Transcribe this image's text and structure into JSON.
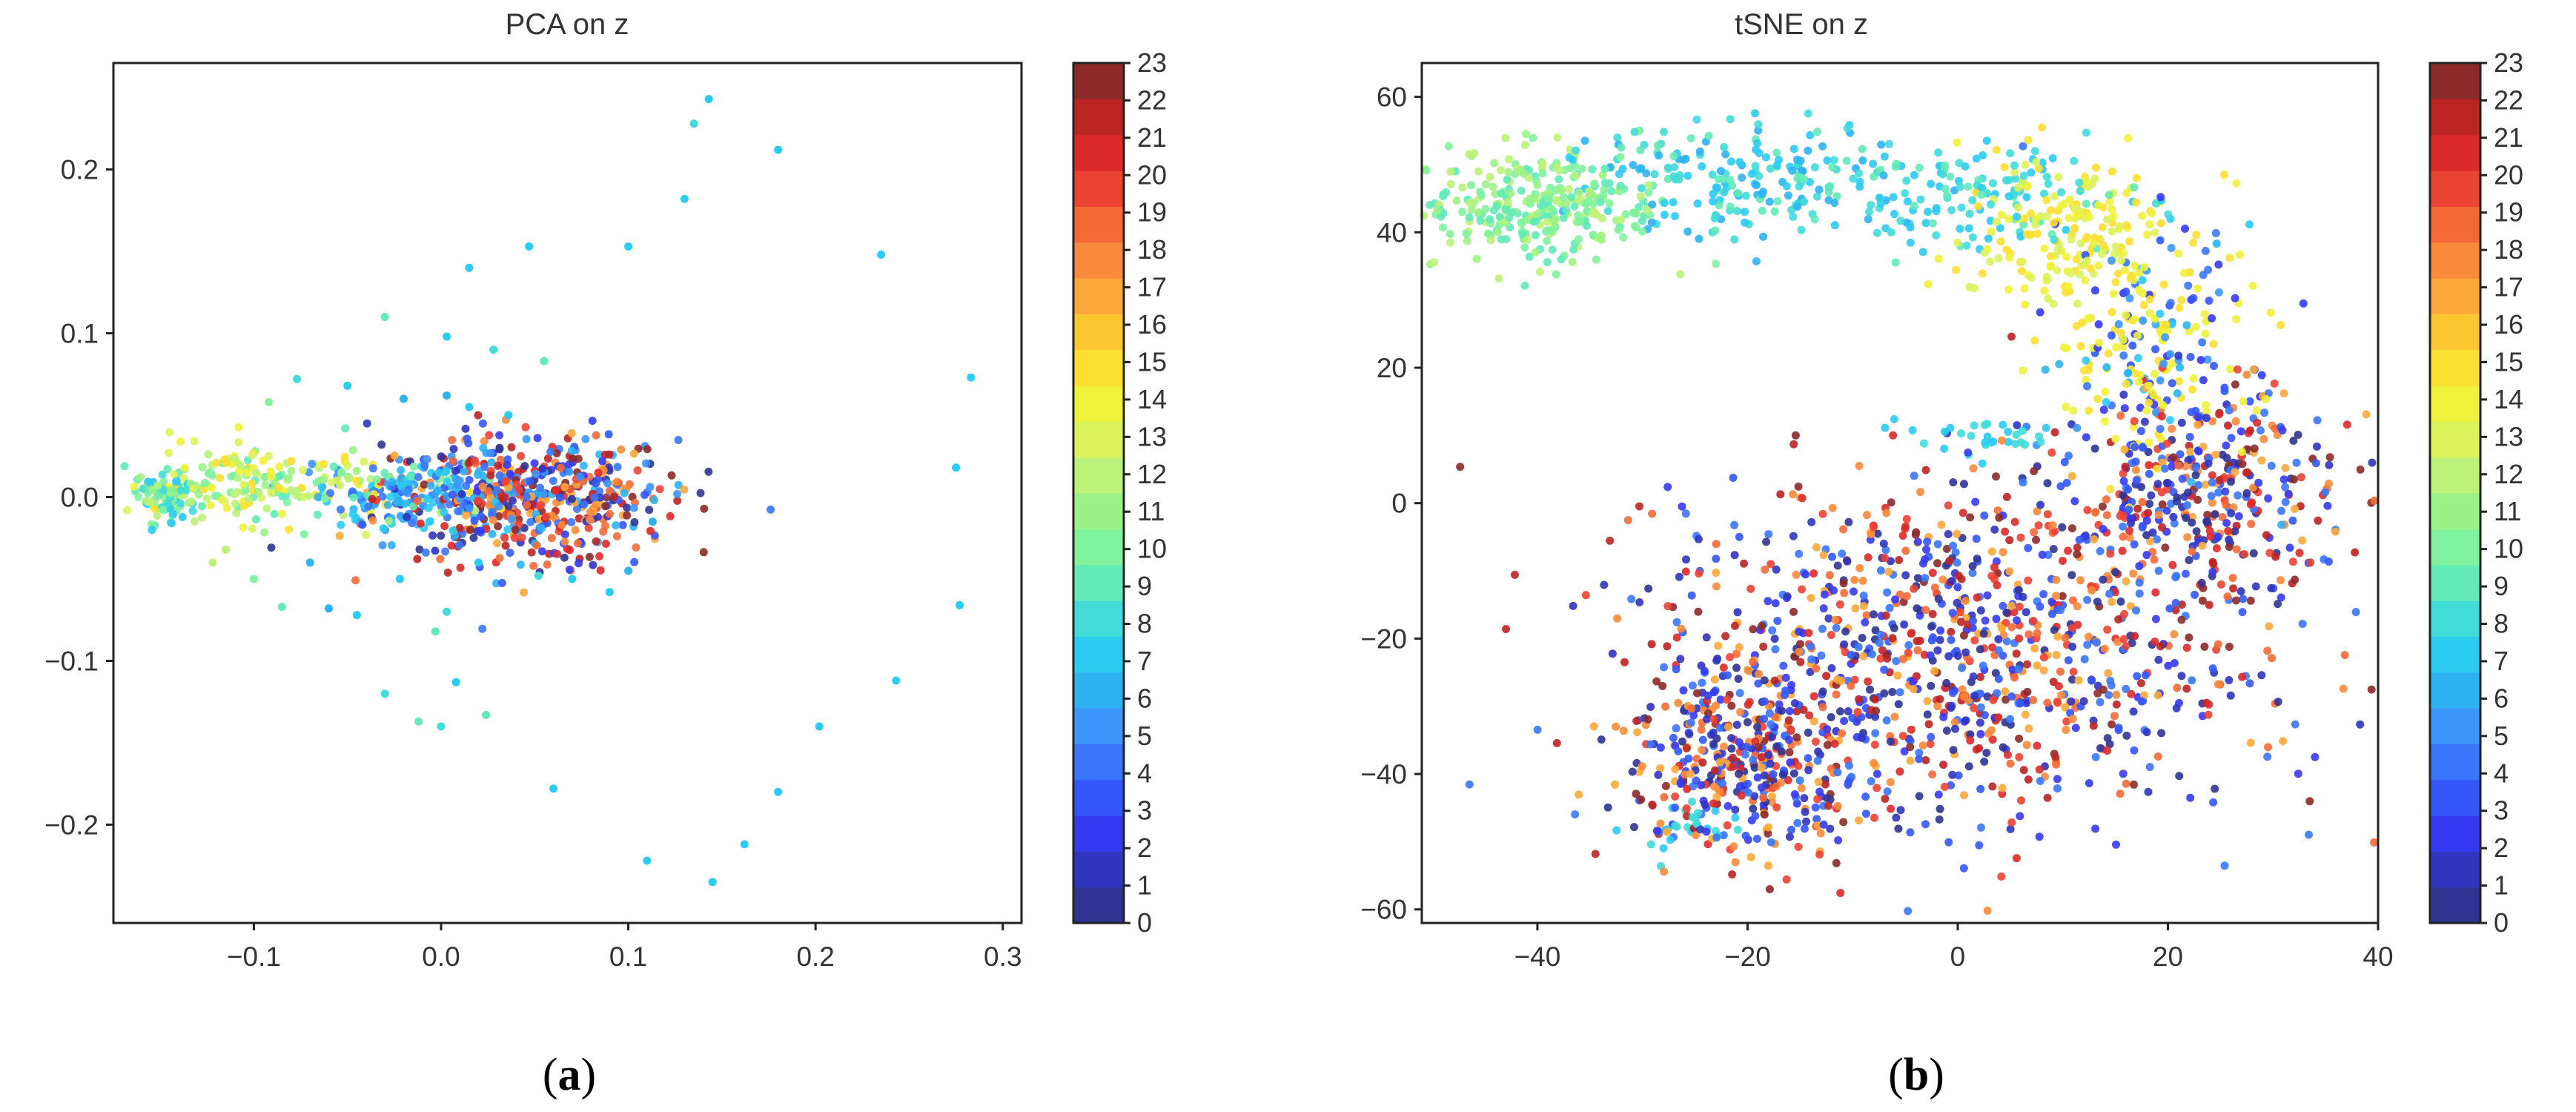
{
  "figure": {
    "caption_a_open": "(",
    "caption_a_letter": "a",
    "caption_a_close": ")",
    "caption_b_open": "(",
    "caption_b_letter": "b",
    "caption_b_close": ")"
  },
  "colorbar": {
    "colormap": "jet",
    "min": 0,
    "max": 23,
    "ticks": [
      "0",
      "1",
      "2",
      "3",
      "4",
      "5",
      "6",
      "7",
      "8",
      "9",
      "10",
      "11",
      "12",
      "13",
      "14",
      "15",
      "16",
      "17",
      "18",
      "19",
      "20",
      "21",
      "22",
      "23"
    ],
    "colors": [
      "#2f3493",
      "#3134bf",
      "#353af2",
      "#3457fc",
      "#3a76fc",
      "#3c96fc",
      "#2fb2f2",
      "#2ccbf2",
      "#41dcd8",
      "#63eab8",
      "#81f29d",
      "#9df286",
      "#bdf27a",
      "#dbf25c",
      "#eef23a",
      "#fbe032",
      "#fdc731",
      "#fca83a",
      "#f9893b",
      "#f46a36",
      "#ec4234",
      "#dc2a2a",
      "#bd2424",
      "#8c2a2a"
    ]
  },
  "chart_data": [
    {
      "type": "scatter",
      "title": "PCA on z",
      "xlabel": "",
      "ylabel": "",
      "xlim": [
        -0.175,
        0.31
      ],
      "ylim": [
        -0.26,
        0.265
      ],
      "xticks": [
        -0.1,
        0.0,
        0.1,
        0.2,
        0.3
      ],
      "xtick_labels": [
        "−0.1",
        "0.0",
        "0.1",
        "0.2",
        "0.3"
      ],
      "yticks": [
        -0.2,
        -0.1,
        0.0,
        0.1,
        0.2
      ],
      "ytick_labels": [
        "−0.2",
        "−0.1",
        "0.0",
        "0.1",
        "0.2"
      ],
      "grid": false,
      "color_by": "label 0–23",
      "points": [
        [
          0.143,
          0.243,
          7
        ],
        [
          0.135,
          0.228,
          8
        ],
        [
          0.18,
          0.212,
          7
        ],
        [
          0.13,
          0.182,
          7
        ],
        [
          0.047,
          0.153,
          7
        ],
        [
          0.1,
          0.153,
          7
        ],
        [
          0.235,
          0.148,
          7
        ],
        [
          0.015,
          0.14,
          7
        ],
        [
          -0.03,
          0.11,
          9
        ],
        [
          0.283,
          0.073,
          7
        ],
        [
          0.003,
          0.098,
          7
        ],
        [
          0.028,
          0.09,
          8
        ],
        [
          -0.077,
          0.072,
          8
        ],
        [
          -0.05,
          0.068,
          7
        ],
        [
          0.055,
          0.083,
          9
        ],
        [
          -0.02,
          0.06,
          6
        ],
        [
          0.003,
          0.062,
          6
        ],
        [
          0.015,
          0.055,
          7
        ],
        [
          0.036,
          0.05,
          7
        ],
        [
          -0.092,
          0.058,
          10
        ],
        [
          0.275,
          0.018,
          7
        ],
        [
          0.277,
          -0.066,
          7
        ],
        [
          0.243,
          -0.112,
          7
        ],
        [
          0.202,
          -0.14,
          7
        ],
        [
          0.18,
          -0.18,
          7
        ],
        [
          0.162,
          -0.212,
          7
        ],
        [
          0.145,
          -0.235,
          7
        ],
        [
          0.11,
          -0.222,
          7
        ],
        [
          0.06,
          -0.178,
          7
        ],
        [
          0.0,
          -0.14,
          8
        ],
        [
          0.008,
          -0.113,
          7
        ],
        [
          -0.03,
          -0.12,
          8
        ],
        [
          0.024,
          -0.133,
          9
        ],
        [
          -0.012,
          -0.137,
          9
        ],
        [
          -0.003,
          -0.082,
          9
        ],
        [
          0.003,
          -0.07,
          8
        ],
        [
          -0.045,
          -0.072,
          7
        ],
        [
          -0.06,
          -0.068,
          6
        ],
        [
          -0.085,
          -0.067,
          9
        ],
        [
          -0.1,
          -0.05,
          10
        ],
        [
          0.09,
          -0.058,
          7
        ],
        [
          0.1,
          -0.045,
          6
        ],
        [
          0.07,
          -0.05,
          7
        ],
        [
          0.052,
          -0.048,
          8
        ],
        [
          -0.115,
          -0.032,
          12
        ],
        [
          -0.122,
          -0.04,
          12
        ],
        [
          0.113,
          -0.015,
          6
        ],
        [
          0.02,
          -0.04,
          7
        ],
        [
          -0.022,
          -0.05,
          7
        ],
        [
          -0.07,
          -0.04,
          6
        ]
      ],
      "dense_regions": [
        {
          "x_center": 0.045,
          "y_center": 0.0,
          "x_spread": 0.04,
          "y_spread": 0.02,
          "count": 520,
          "labels": "0–6 and 17–23"
        },
        {
          "x_center": -0.015,
          "y_center": 0.002,
          "x_spread": 0.025,
          "y_spread": 0.01,
          "count": 160,
          "labels": "4–7"
        },
        {
          "x_center": -0.09,
          "y_center": 0.007,
          "x_spread": 0.045,
          "y_spread": 0.012,
          "count": 230,
          "labels": "9–15"
        },
        {
          "x_center": -0.145,
          "y_center": -0.002,
          "x_spread": 0.008,
          "y_spread": 0.006,
          "count": 90,
          "labels": "7–12"
        }
      ]
    },
    {
      "type": "scatter",
      "title": "tSNE on z",
      "xlabel": "",
      "ylabel": "",
      "xlim": [
        -51,
        40
      ],
      "ylim": [
        -62,
        65
      ],
      "xticks": [
        -40,
        -20,
        0,
        20,
        40
      ],
      "xtick_labels": [
        "−40",
        "−20",
        "0",
        "20",
        "40"
      ],
      "yticks": [
        -60,
        -40,
        -20,
        0,
        20,
        40,
        60
      ],
      "ytick_labels": [
        "−60",
        "−40",
        "−20",
        "0",
        "20",
        "40",
        "60"
      ],
      "grid": false,
      "color_by": "label 0–23",
      "dense_regions": [
        {
          "x_center": -40,
          "y_center": 44,
          "x_spread": 6,
          "y_spread": 4,
          "count": 300,
          "labels": "9–12"
        },
        {
          "x_center": -20,
          "y_center": 48,
          "x_spread": 9,
          "y_spread": 4,
          "count": 220,
          "labels": "6–9"
        },
        {
          "x_center": 2,
          "y_center": 45,
          "x_spread": 7,
          "y_spread": 4,
          "count": 120,
          "labels": "7–9"
        },
        {
          "x_center": 10,
          "y_center": 40,
          "x_spread": 5,
          "y_spread": 6,
          "count": 180,
          "labels": "13–15"
        },
        {
          "x_center": 18,
          "y_center": 24,
          "x_spread": 5,
          "y_spread": 9,
          "count": 220,
          "labels": "2–7, 14–15"
        },
        {
          "x_center": 24,
          "y_center": 2,
          "x_spread": 6,
          "y_spread": 8,
          "count": 380,
          "labels": "0–4, 17–23"
        },
        {
          "x_center": 0,
          "y_center": -22,
          "x_spread": 14,
          "y_spread": 13,
          "count": 1000,
          "labels": "0–4, 17–23"
        },
        {
          "x_center": -20,
          "y_center": -38,
          "x_spread": 6,
          "y_spread": 7,
          "count": 380,
          "labels": "0–4, 17–23"
        },
        {
          "x_center": 3,
          "y_center": 10,
          "x_spread": 4,
          "y_spread": 1.5,
          "count": 30,
          "labels": "7–8"
        },
        {
          "x_center": -27,
          "y_center": -48,
          "x_spread": 3,
          "y_spread": 2,
          "count": 25,
          "labels": "7–8"
        }
      ]
    }
  ]
}
